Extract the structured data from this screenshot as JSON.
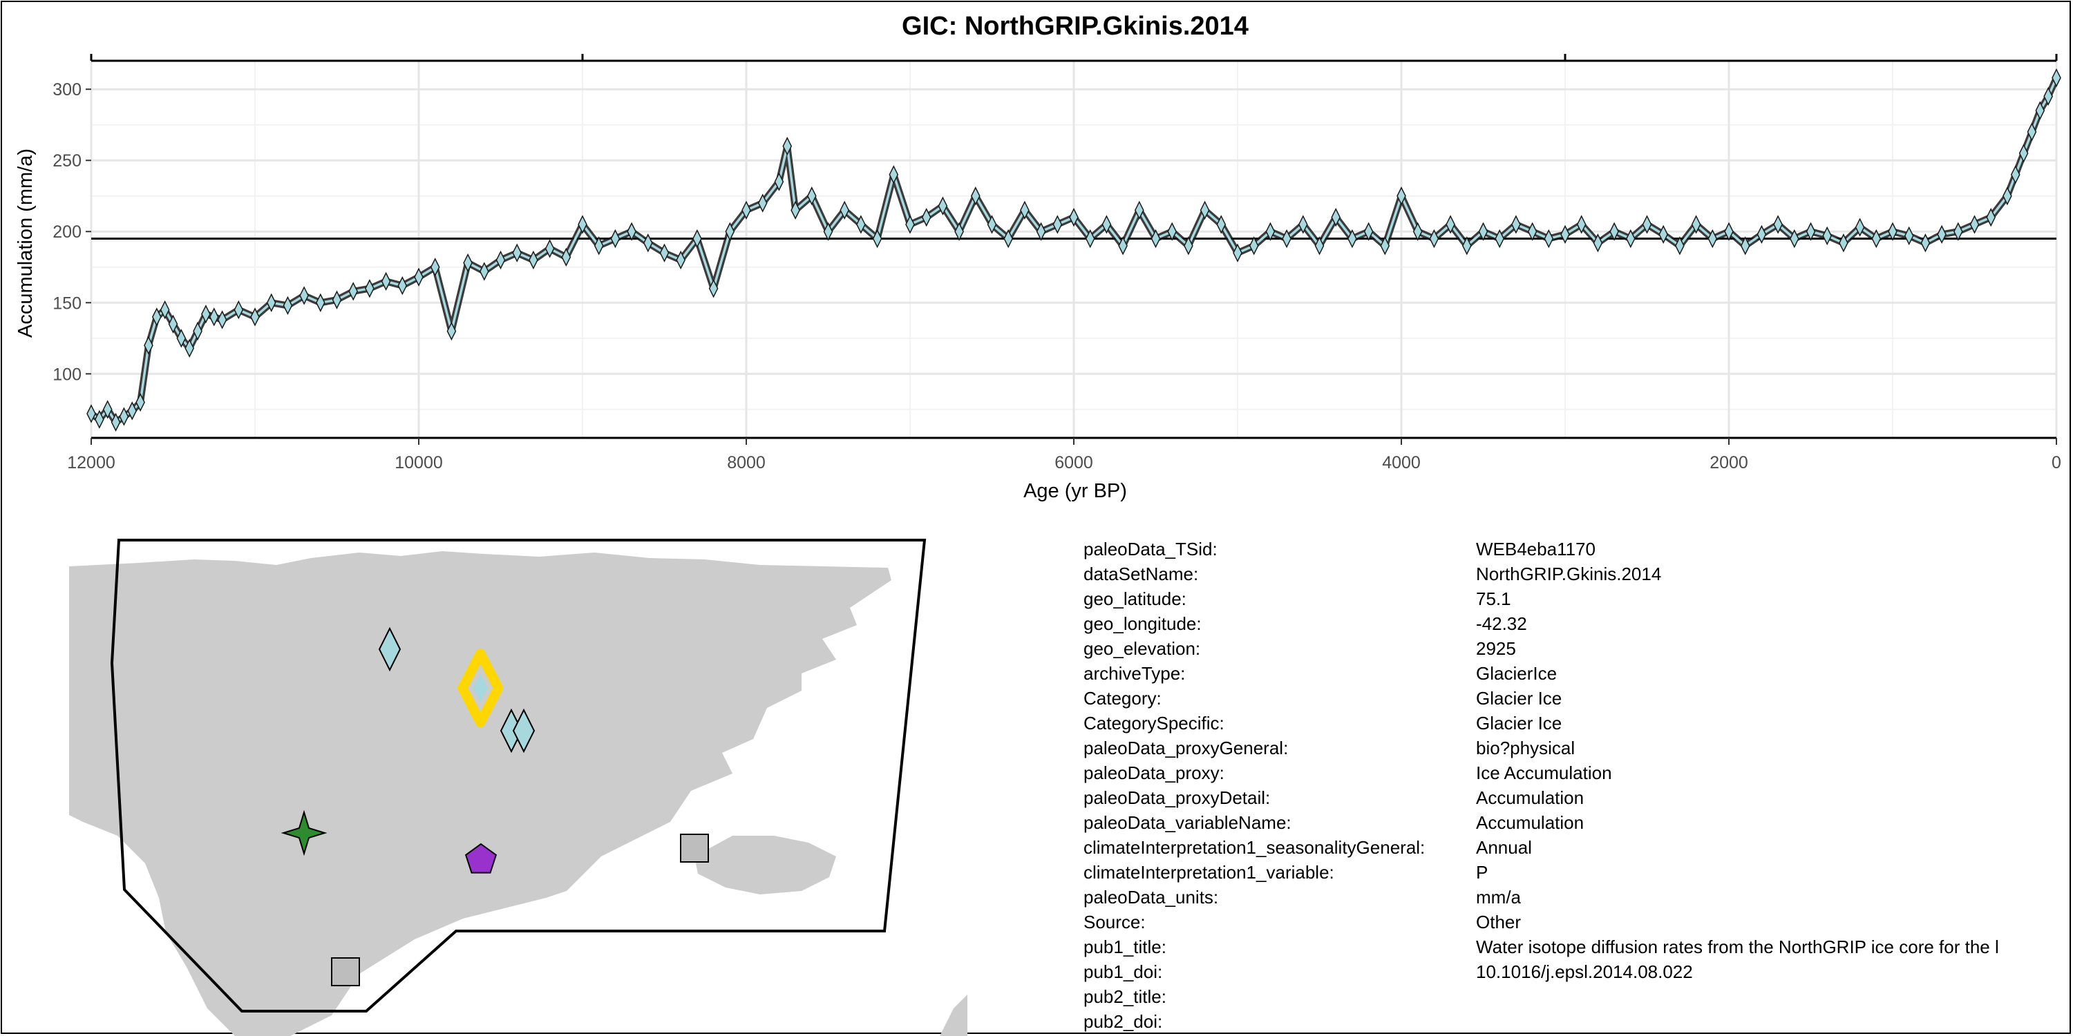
{
  "chart_data": {
    "type": "line",
    "title": "GIC: NorthGRIP.Gkinis.2014",
    "xlabel": "Age (yr BP)",
    "ylabel": "Accumulation (mm/a)",
    "x_reversed": true,
    "xlim": [
      12000,
      0
    ],
    "ylim": [
      55,
      320
    ],
    "x_ticks": [
      12000,
      10000,
      8000,
      6000,
      4000,
      2000,
      0
    ],
    "x_tick_labels": [
      "12000",
      "10000",
      "8000",
      "6000",
      "4000",
      "2000",
      "0"
    ],
    "y_ticks": [
      100,
      150,
      200,
      250,
      300
    ],
    "y_tick_labels": [
      "100",
      "150",
      "200",
      "250",
      "300"
    ],
    "reference_line": 195,
    "grid": true,
    "series": [
      {
        "marker": "diamond",
        "color": "#a7d8de",
        "edge_color": "#1a1a1a",
        "x": [
          12000,
          11950,
          11900,
          11850,
          11800,
          11750,
          11700,
          11650,
          11600,
          11550,
          11500,
          11450,
          11400,
          11350,
          11300,
          11250,
          11200,
          11100,
          11000,
          10900,
          10800,
          10700,
          10600,
          10500,
          10400,
          10300,
          10200,
          10100,
          10000,
          9900,
          9800,
          9700,
          9600,
          9500,
          9400,
          9300,
          9200,
          9100,
          9000,
          8900,
          8800,
          8700,
          8600,
          8500,
          8400,
          8300,
          8200,
          8100,
          8000,
          7900,
          7800,
          7750,
          7700,
          7600,
          7500,
          7400,
          7300,
          7200,
          7100,
          7000,
          6900,
          6800,
          6700,
          6600,
          6500,
          6400,
          6300,
          6200,
          6100,
          6000,
          5900,
          5800,
          5700,
          5600,
          5500,
          5400,
          5300,
          5200,
          5100,
          5000,
          4900,
          4800,
          4700,
          4600,
          4500,
          4400,
          4300,
          4200,
          4100,
          4000,
          3900,
          3800,
          3700,
          3600,
          3500,
          3400,
          3300,
          3200,
          3100,
          3000,
          2900,
          2800,
          2700,
          2600,
          2500,
          2400,
          2300,
          2200,
          2100,
          2000,
          1900,
          1800,
          1700,
          1600,
          1500,
          1400,
          1300,
          1200,
          1100,
          1000,
          900,
          800,
          700,
          600,
          500,
          400,
          300,
          250,
          200,
          150,
          100,
          50,
          0
        ],
        "y": [
          72,
          68,
          75,
          66,
          70,
          74,
          80,
          120,
          140,
          145,
          135,
          125,
          118,
          130,
          142,
          140,
          138,
          145,
          140,
          150,
          148,
          155,
          150,
          152,
          158,
          160,
          165,
          162,
          168,
          175,
          130,
          178,
          172,
          180,
          185,
          180,
          188,
          182,
          205,
          190,
          195,
          200,
          192,
          185,
          180,
          195,
          160,
          200,
          215,
          220,
          235,
          260,
          215,
          225,
          200,
          215,
          205,
          195,
          240,
          205,
          210,
          218,
          200,
          225,
          205,
          195,
          215,
          200,
          205,
          210,
          195,
          205,
          190,
          215,
          195,
          200,
          190,
          215,
          205,
          185,
          190,
          200,
          195,
          205,
          190,
          210,
          195,
          200,
          190,
          225,
          200,
          195,
          205,
          190,
          200,
          195,
          205,
          200,
          195,
          198,
          205,
          192,
          200,
          195,
          205,
          198,
          190,
          205,
          195,
          200,
          190,
          198,
          205,
          195,
          200,
          197,
          192,
          203,
          195,
          200,
          197,
          192,
          198,
          200,
          205,
          210,
          225,
          240,
          255,
          270,
          285,
          295,
          308
        ]
      }
    ]
  },
  "map": {
    "markers": [
      {
        "shape": "diamond",
        "color": "#a7d8de"
      },
      {
        "shape": "diamond",
        "color": "#a7d8de",
        "highlight": "#ffd700"
      },
      {
        "shape": "diamond",
        "color": "#a7d8de"
      },
      {
        "shape": "diamond",
        "color": "#a7d8de"
      },
      {
        "shape": "star",
        "color": "#2e8b2e"
      },
      {
        "shape": "pentagon",
        "color": "#9932cc"
      },
      {
        "shape": "square",
        "color": "#bdbdbd"
      },
      {
        "shape": "square",
        "color": "#bdbdbd"
      }
    ],
    "land_color": "#cccccc"
  },
  "metadata": [
    {
      "key": "paleoData_TSid:",
      "value": "WEB4eba1170"
    },
    {
      "key": "dataSetName:",
      "value": "NorthGRIP.Gkinis.2014"
    },
    {
      "key": "geo_latitude:",
      "value": "75.1"
    },
    {
      "key": "geo_longitude:",
      "value": "-42.32"
    },
    {
      "key": "geo_elevation:",
      "value": "2925"
    },
    {
      "key": "archiveType:",
      "value": "GlacierIce"
    },
    {
      "key": "Category:",
      "value": "Glacier Ice"
    },
    {
      "key": "CategorySpecific:",
      "value": "Glacier Ice"
    },
    {
      "key": "paleoData_proxyGeneral:",
      "value": "bio?physical"
    },
    {
      "key": "paleoData_proxy:",
      "value": "Ice Accumulation"
    },
    {
      "key": "paleoData_proxyDetail:",
      "value": "Accumulation"
    },
    {
      "key": "paleoData_variableName:",
      "value": "Accumulation"
    },
    {
      "key": "climateInterpretation1_seasonalityGeneral:",
      "value": "Annual"
    },
    {
      "key": "climateInterpretation1_variable:",
      "value": "P"
    },
    {
      "key": "paleoData_units:",
      "value": "mm/a"
    },
    {
      "key": "Source:",
      "value": "Other"
    },
    {
      "key": "pub1_title:",
      "value": "Water isotope diffusion rates from the NorthGRIP ice core for the l"
    },
    {
      "key": "pub1_doi:",
      "value": "10.1016/j.epsl.2014.08.022"
    },
    {
      "key": "pub2_title:",
      "value": ""
    },
    {
      "key": "pub2_doi:",
      "value": ""
    }
  ]
}
